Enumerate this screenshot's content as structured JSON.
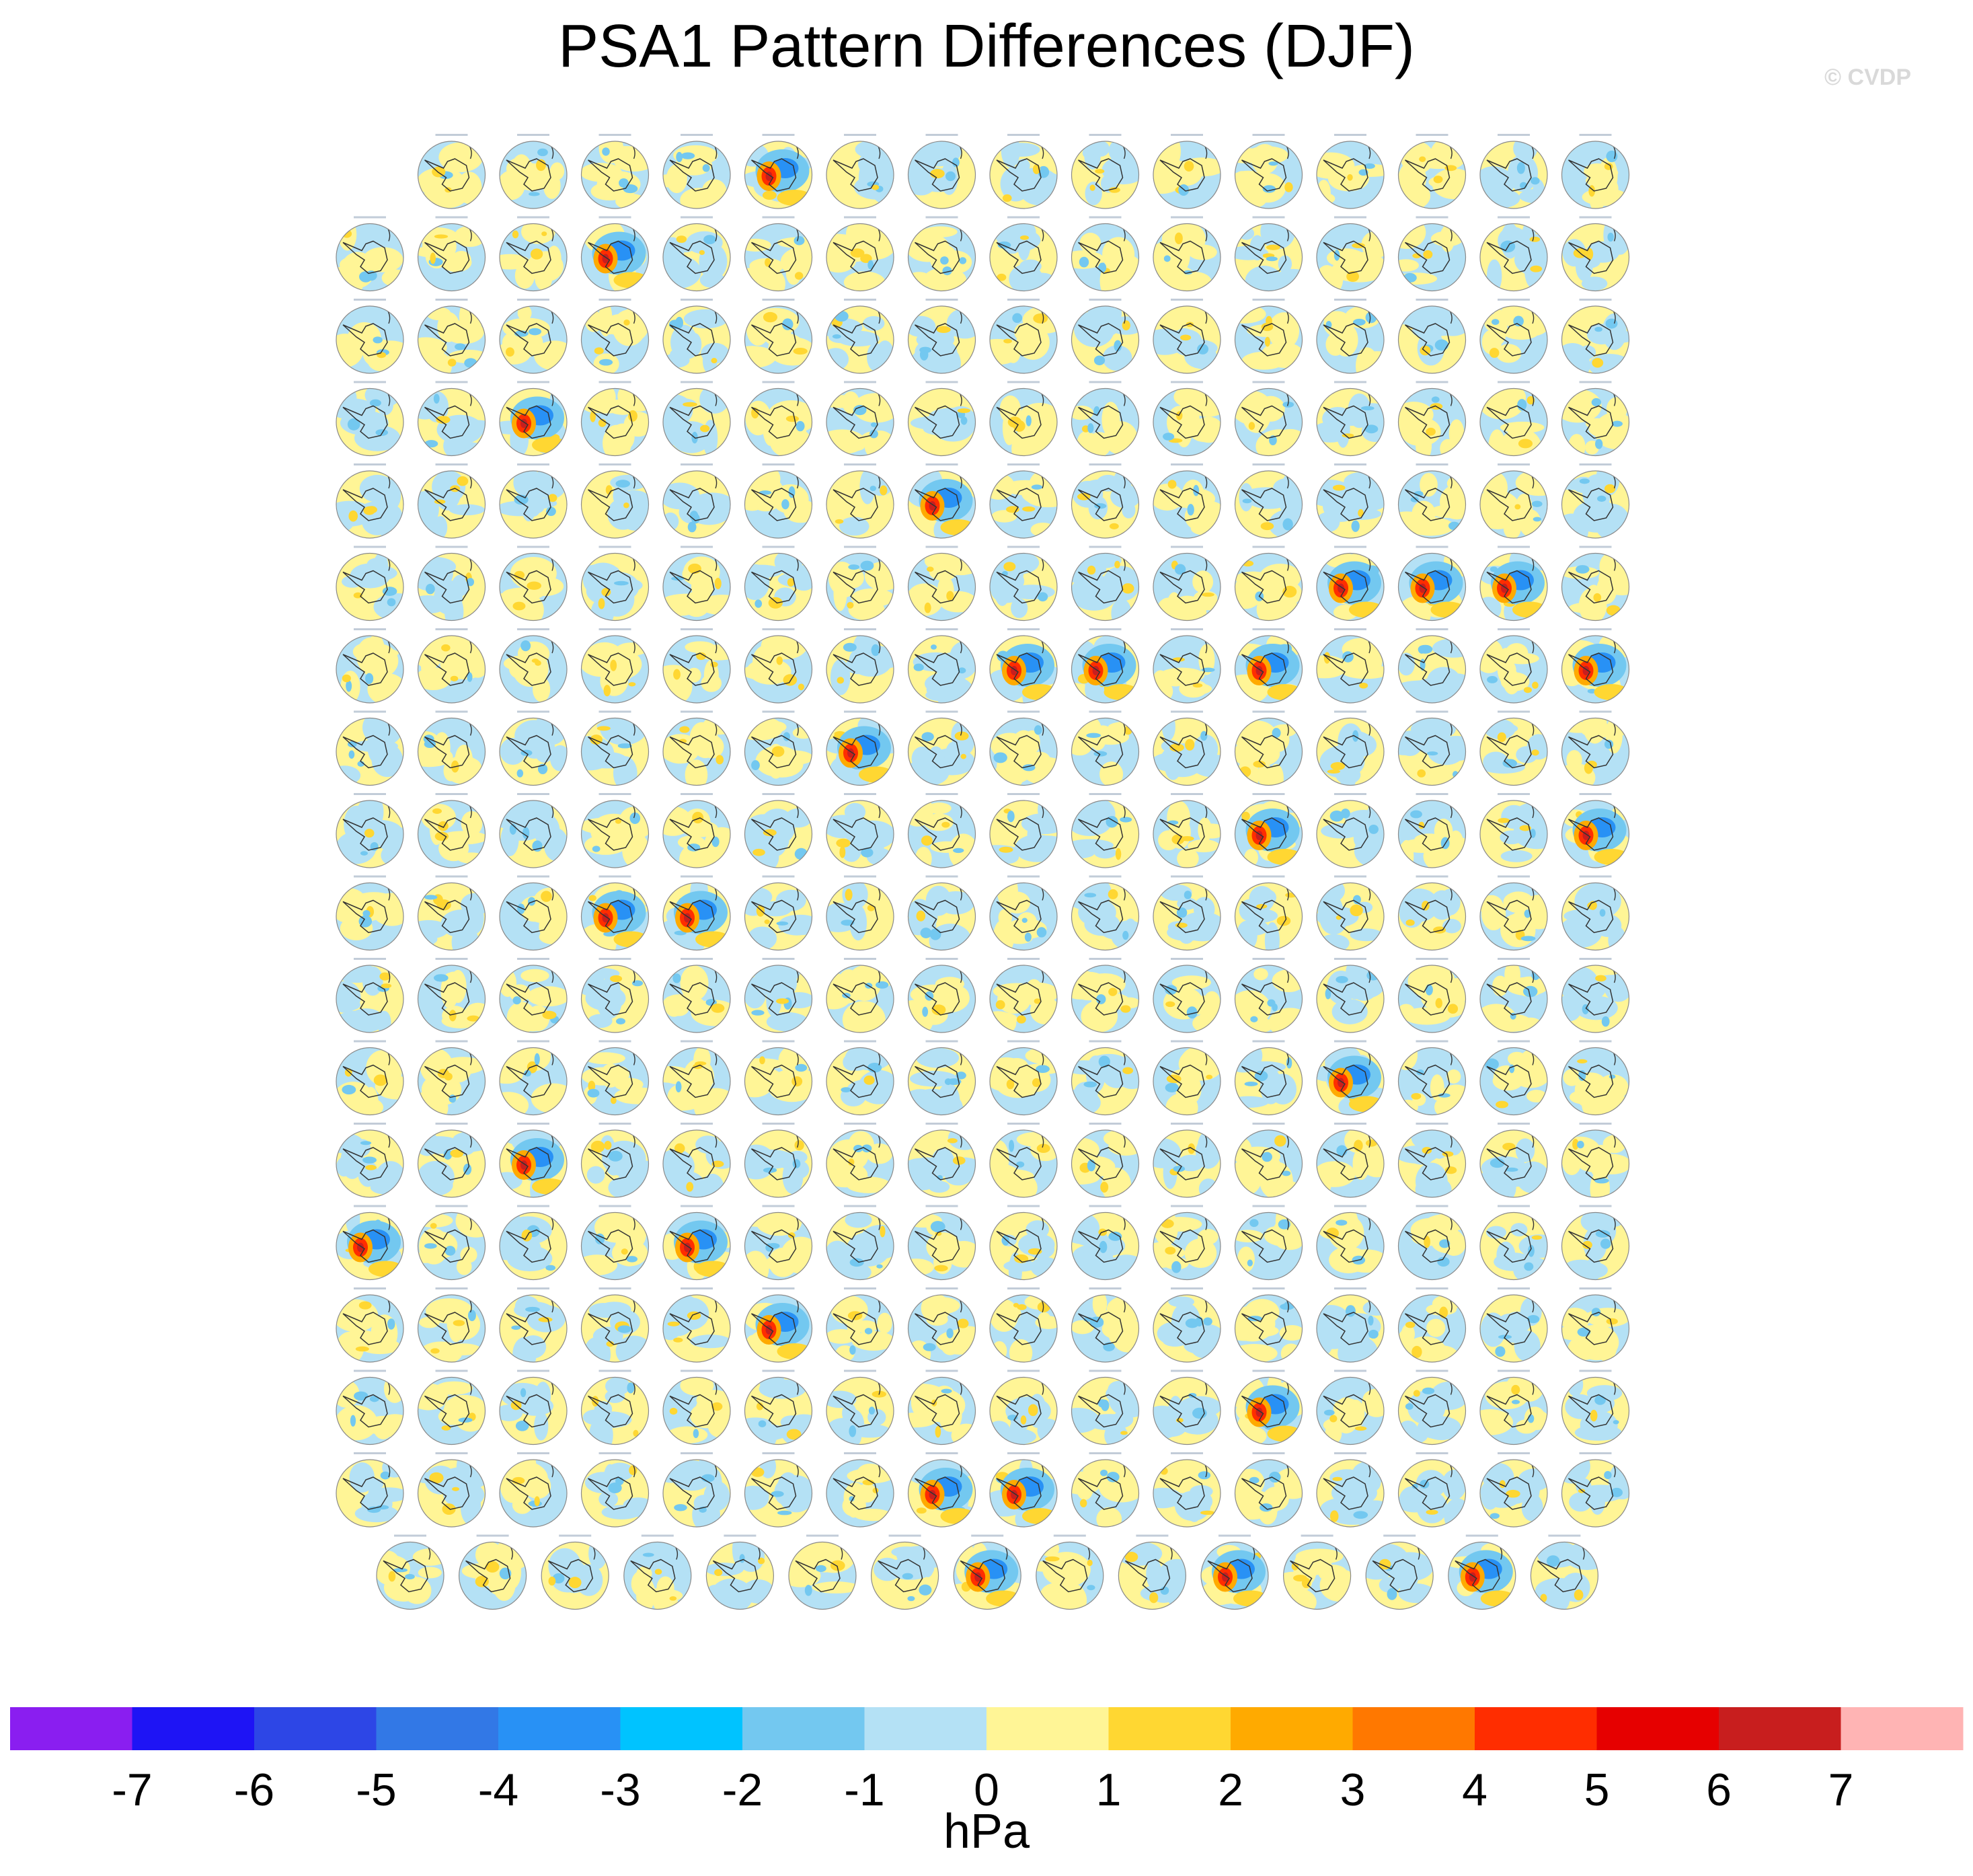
{
  "title": "PSA1 Pattern Differences (DJF)",
  "credit": "© CVDP",
  "colorbar": {
    "unit": "hPa",
    "ticks": [
      "-7",
      "-6",
      "-5",
      "-4",
      "-3",
      "-2",
      "-1",
      "0",
      "1",
      "2",
      "3",
      "4",
      "5",
      "6",
      "7"
    ],
    "colors": [
      "#8a1ef0",
      "#1e14f5",
      "#2d46e6",
      "#3278e6",
      "#2891f5",
      "#00c3ff",
      "#73c8f0",
      "#b4e1f5",
      "#fff596",
      "#ffd732",
      "#ffaa00",
      "#ff7800",
      "#ff2d00",
      "#e60000",
      "#c81e1e",
      "#ffb4b4"
    ]
  },
  "chart_data": {
    "type": "heatmap",
    "title": "PSA1 Pattern Differences (DJF)",
    "description_units": "hPa",
    "color_levels": [
      -7,
      -6,
      -5,
      -4,
      -3,
      -2,
      -1,
      0,
      1,
      2,
      3,
      4,
      5,
      6,
      7
    ],
    "panel_rows": [
      15,
      16,
      16,
      16,
      16,
      16,
      16,
      16,
      16,
      16,
      16,
      16,
      16,
      16,
      16,
      16,
      16,
      15
    ],
    "strong_panels": [
      [
        0,
        4
      ],
      [
        1,
        3
      ],
      [
        3,
        2
      ],
      [
        4,
        7
      ],
      [
        5,
        12
      ],
      [
        5,
        13
      ],
      [
        5,
        14
      ],
      [
        6,
        8
      ],
      [
        6,
        9
      ],
      [
        6,
        11
      ],
      [
        6,
        15
      ],
      [
        7,
        6
      ],
      [
        8,
        11
      ],
      [
        8,
        15
      ],
      [
        9,
        3
      ],
      [
        9,
        4
      ],
      [
        11,
        12
      ],
      [
        12,
        2
      ],
      [
        13,
        0
      ],
      [
        13,
        4
      ],
      [
        14,
        5
      ],
      [
        15,
        11
      ],
      [
        16,
        7
      ],
      [
        16,
        8
      ],
      [
        17,
        7
      ],
      [
        17,
        10
      ],
      [
        17,
        13
      ]
    ],
    "panel_titles_legible": false
  }
}
